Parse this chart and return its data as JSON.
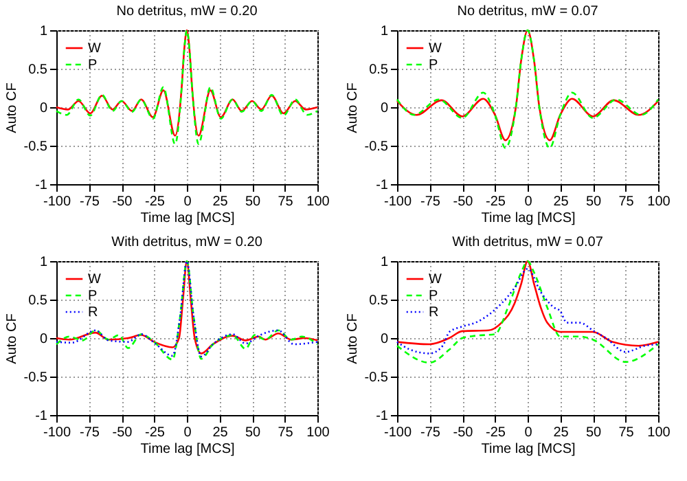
{
  "chart_data": [
    {
      "type": "line",
      "title": "No detritus,   mW = 0.20",
      "xlabel": "Time lag [MCS]",
      "ylabel": "Auto CF",
      "xlim": [
        -100,
        100
      ],
      "ylim": [
        -1,
        1
      ],
      "xticks": [
        -100,
        -75,
        -50,
        -25,
        0,
        25,
        50,
        75,
        100
      ],
      "yticks": [
        -1,
        -0.5,
        0,
        0.5,
        1
      ],
      "grid": true,
      "legend": "top left",
      "series": [
        {
          "name": "W",
          "color": "#ff0000",
          "line_style": "solid",
          "x": [
            -100,
            -91,
            -83,
            -74,
            -65,
            -57,
            -50,
            -42,
            -35,
            -26,
            -18,
            -9,
            -4,
            -2,
            0,
            2,
            4,
            9,
            18,
            26,
            35,
            42,
            50,
            57,
            65,
            74,
            83,
            91,
            100
          ],
          "values": [
            0.0,
            -0.03,
            0.08,
            -0.08,
            0.15,
            -0.03,
            0.08,
            -0.05,
            0.1,
            -0.13,
            0.22,
            -0.37,
            0.25,
            0.75,
            1.0,
            0.75,
            0.25,
            -0.37,
            0.22,
            -0.13,
            0.1,
            -0.05,
            0.08,
            -0.03,
            0.15,
            -0.08,
            0.08,
            -0.03,
            0.0
          ]
        },
        {
          "name": "P",
          "color": "#00ff00",
          "line_style": "dashed",
          "x": [
            -100,
            -92,
            -83,
            -74,
            -65,
            -57,
            -50,
            -42,
            -35,
            -26,
            -18,
            -9,
            -4,
            -2,
            0,
            2,
            4,
            9,
            18,
            26,
            35,
            42,
            50,
            57,
            65,
            74,
            83,
            92,
            100
          ],
          "values": [
            -0.05,
            -0.1,
            0.1,
            -0.11,
            0.16,
            -0.05,
            0.08,
            -0.06,
            0.1,
            -0.15,
            0.26,
            -0.48,
            0.25,
            0.75,
            1.0,
            0.75,
            0.25,
            -0.48,
            0.26,
            -0.15,
            0.1,
            -0.06,
            0.08,
            -0.05,
            0.16,
            -0.11,
            0.1,
            -0.1,
            -0.05
          ]
        }
      ]
    },
    {
      "type": "line",
      "title": "No detritus,   mW = 0.07",
      "xlabel": "Time lag [MCS]",
      "ylabel": "Auto CF",
      "xlim": [
        -100,
        100
      ],
      "ylim": [
        -1,
        1
      ],
      "xticks": [
        -100,
        -75,
        -50,
        -25,
        0,
        25,
        50,
        75,
        100
      ],
      "yticks": [
        -1,
        -0.5,
        0,
        0.5,
        1
      ],
      "grid": true,
      "legend": "top left",
      "series": [
        {
          "name": "W",
          "color": "#ff0000",
          "line_style": "solid",
          "x": [
            -100,
            -85,
            -66,
            -50,
            -34,
            -25,
            -17,
            -9,
            -5,
            0,
            5,
            9,
            17,
            25,
            34,
            50,
            66,
            85,
            100
          ],
          "values": [
            0.08,
            -0.1,
            0.09,
            -0.12,
            0.11,
            -0.1,
            -0.43,
            0.0,
            0.6,
            1.0,
            0.6,
            0.0,
            -0.43,
            -0.1,
            0.11,
            -0.12,
            0.09,
            -0.1,
            0.08
          ]
        },
        {
          "name": "P",
          "color": "#00ff00",
          "line_style": "dashed",
          "x": [
            -100,
            -87,
            -68,
            -50,
            -34,
            -25,
            -17,
            -9,
            -5,
            0,
            5,
            9,
            17,
            25,
            34,
            50,
            68,
            87,
            100
          ],
          "values": [
            0.1,
            -0.1,
            0.1,
            -0.14,
            0.19,
            -0.1,
            -0.53,
            0.0,
            0.6,
            1.0,
            0.6,
            0.0,
            -0.53,
            -0.1,
            0.19,
            -0.14,
            0.1,
            -0.1,
            0.1
          ]
        }
      ]
    },
    {
      "type": "line",
      "title": "With detritus,   mW = 0.20",
      "xlabel": "Time lag [MCS]",
      "ylabel": "Auto CF",
      "xlim": [
        -100,
        100
      ],
      "ylim": [
        -1,
        1
      ],
      "xticks": [
        -100,
        -75,
        -50,
        -25,
        0,
        25,
        50,
        75,
        100
      ],
      "yticks": [
        -1,
        -0.5,
        0,
        0.5,
        1
      ],
      "grid": true,
      "legend": "top left",
      "series": [
        {
          "name": "W",
          "color": "#ff0000",
          "line_style": "solid",
          "x": [
            -100,
            -90,
            -70,
            -60,
            -45,
            -35,
            -25,
            -11,
            -6,
            -3,
            0,
            3,
            6,
            11,
            20,
            35,
            45,
            55,
            60,
            70,
            80,
            90,
            100
          ],
          "values": [
            0.0,
            -0.02,
            0.07,
            -0.02,
            0.0,
            0.04,
            -0.05,
            -0.12,
            0.0,
            0.5,
            1.0,
            0.5,
            0.0,
            -0.2,
            -0.08,
            0.03,
            -0.03,
            0.02,
            -0.02,
            0.06,
            -0.02,
            0.0,
            -0.03
          ]
        },
        {
          "name": "P",
          "color": "#00ff00",
          "line_style": "dashed",
          "x": [
            -100,
            -90,
            -80,
            -70,
            -60,
            -52,
            -45,
            -35,
            -25,
            -11,
            -5,
            0,
            5,
            11,
            20,
            30,
            35,
            45,
            52,
            60,
            70,
            80,
            88,
            100
          ],
          "values": [
            -0.08,
            0.02,
            -0.03,
            0.1,
            -0.02,
            0.04,
            -0.13,
            0.05,
            -0.05,
            -0.28,
            0.3,
            1.0,
            0.3,
            -0.27,
            -0.08,
            0.02,
            0.04,
            -0.14,
            0.04,
            -0.02,
            0.1,
            -0.02,
            0.02,
            -0.08
          ]
        },
        {
          "name": "R",
          "color": "#0000ff",
          "line_style": "dotted",
          "x": [
            -100,
            -88,
            -70,
            -60,
            -45,
            -35,
            -25,
            -11,
            -5,
            0,
            5,
            11,
            20,
            35,
            45,
            55,
            70,
            82,
            100
          ],
          "values": [
            -0.05,
            -0.06,
            0.1,
            -0.03,
            -0.05,
            0.05,
            -0.06,
            -0.23,
            0.3,
            1.0,
            0.3,
            -0.24,
            -0.08,
            0.05,
            -0.07,
            0.03,
            0.1,
            -0.08,
            -0.05
          ]
        }
      ]
    },
    {
      "type": "line",
      "title": "With detritus,   mW = 0.07",
      "xlabel": "Time lag [MCS]",
      "ylabel": "Auto CF",
      "xlim": [
        -100,
        100
      ],
      "ylim": [
        -1,
        1
      ],
      "xticks": [
        -100,
        -75,
        -50,
        -25,
        0,
        25,
        50,
        75,
        100
      ],
      "yticks": [
        -1,
        -0.5,
        0,
        0.5,
        1
      ],
      "grid": true,
      "legend": "top left",
      "series": [
        {
          "name": "W",
          "color": "#ff0000",
          "line_style": "solid",
          "x": [
            -100,
            -75,
            -60,
            -50,
            -30,
            -20,
            -10,
            -5,
            0,
            5,
            10,
            15,
            25,
            50,
            65,
            85,
            100
          ],
          "values": [
            -0.05,
            -0.08,
            0.0,
            0.09,
            0.1,
            0.2,
            0.45,
            0.7,
            1.0,
            0.7,
            0.4,
            0.2,
            0.08,
            0.08,
            -0.05,
            -0.1,
            -0.05
          ]
        },
        {
          "name": "P",
          "color": "#00ff00",
          "line_style": "dashed",
          "x": [
            -100,
            -75,
            -60,
            -50,
            -40,
            -25,
            -15,
            -5,
            0,
            5,
            15,
            25,
            40,
            50,
            75,
            100
          ],
          "values": [
            -0.1,
            -0.32,
            -0.15,
            0.0,
            0.03,
            0.05,
            0.4,
            0.85,
            1.0,
            0.85,
            0.4,
            0.02,
            0.02,
            -0.02,
            -0.31,
            -0.08
          ]
        },
        {
          "name": "R",
          "color": "#0000ff",
          "line_style": "dotted",
          "x": [
            -100,
            -90,
            -75,
            -65,
            -60,
            -50,
            -40,
            -30,
            -20,
            -10,
            0,
            10,
            20,
            25,
            30,
            40,
            50,
            60,
            75,
            90,
            100
          ],
          "values": [
            -0.05,
            -0.15,
            -0.2,
            -0.1,
            0.08,
            0.15,
            0.2,
            0.3,
            0.45,
            0.65,
            0.9,
            0.6,
            0.4,
            0.35,
            0.2,
            0.2,
            0.1,
            0.0,
            -0.18,
            -0.1,
            -0.08
          ]
        }
      ]
    }
  ]
}
